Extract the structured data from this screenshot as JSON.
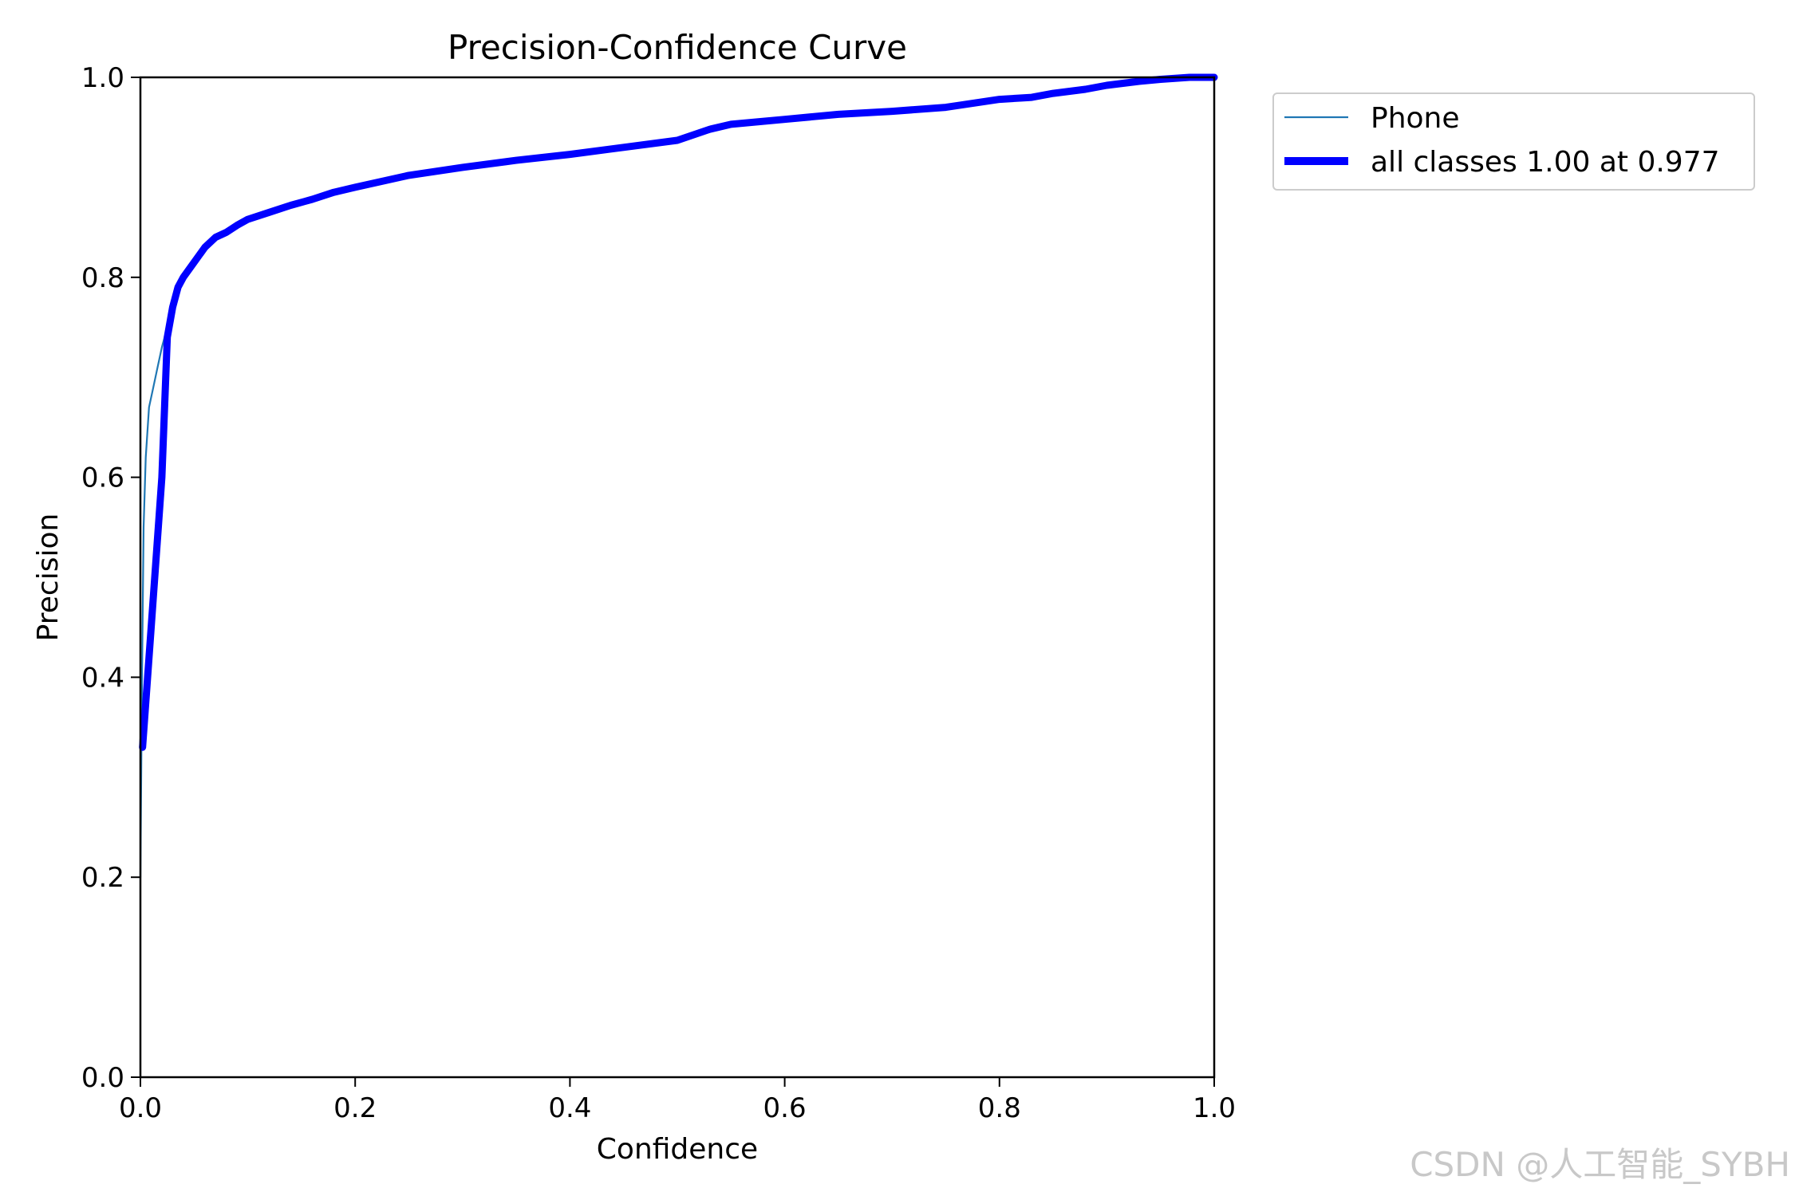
{
  "chart_data": {
    "type": "line",
    "title": "Precision-Confidence Curve",
    "xlabel": "Confidence",
    "ylabel": "Precision",
    "xlim": [
      0,
      1
    ],
    "ylim": [
      0,
      1
    ],
    "xticks": [
      "0.0",
      "0.2",
      "0.4",
      "0.6",
      "0.8",
      "1.0"
    ],
    "yticks": [
      "0.0",
      "0.2",
      "0.4",
      "0.6",
      "0.8",
      "1.0"
    ],
    "grid": false,
    "legend_position": "outside top-right",
    "series": [
      {
        "name": "Phone",
        "color": "#1f77b4",
        "style": "thin",
        "x": [
          0.0,
          0.0015,
          0.003,
          0.005,
          0.008,
          0.012,
          0.016,
          0.02,
          0.025,
          0.03,
          0.035,
          0.04,
          0.045,
          0.05,
          0.06,
          0.07,
          0.08,
          0.09,
          0.1,
          0.12,
          0.14,
          0.16,
          0.18,
          0.2,
          0.25,
          0.3,
          0.35,
          0.4,
          0.45,
          0.5,
          0.53,
          0.55,
          0.6,
          0.65,
          0.7,
          0.75,
          0.8,
          0.83,
          0.85,
          0.88,
          0.9,
          0.93,
          0.95,
          0.977,
          1.0
        ],
        "values": [
          0.2,
          0.4,
          0.55,
          0.62,
          0.67,
          0.69,
          0.71,
          0.73,
          0.75,
          0.77,
          0.79,
          0.8,
          0.81,
          0.815,
          0.83,
          0.84,
          0.845,
          0.852,
          0.858,
          0.865,
          0.872,
          0.878,
          0.885,
          0.89,
          0.902,
          0.91,
          0.917,
          0.923,
          0.93,
          0.937,
          0.948,
          0.953,
          0.958,
          0.963,
          0.966,
          0.97,
          0.978,
          0.98,
          0.984,
          0.988,
          0.992,
          0.996,
          0.998,
          1.0,
          1.0
        ]
      },
      {
        "name": "all classes 1.00 at 0.977",
        "color": "#0000ff",
        "style": "thick",
        "x": [
          0.002,
          0.01,
          0.02,
          0.025,
          0.03,
          0.035,
          0.04,
          0.05,
          0.06,
          0.07,
          0.08,
          0.09,
          0.1,
          0.12,
          0.14,
          0.16,
          0.18,
          0.2,
          0.25,
          0.3,
          0.35,
          0.4,
          0.45,
          0.5,
          0.53,
          0.55,
          0.6,
          0.65,
          0.7,
          0.75,
          0.8,
          0.83,
          0.85,
          0.88,
          0.9,
          0.93,
          0.95,
          0.977,
          1.0
        ],
        "values": [
          0.33,
          0.45,
          0.6,
          0.74,
          0.77,
          0.79,
          0.8,
          0.815,
          0.83,
          0.84,
          0.845,
          0.852,
          0.858,
          0.865,
          0.872,
          0.878,
          0.885,
          0.89,
          0.902,
          0.91,
          0.917,
          0.923,
          0.93,
          0.937,
          0.948,
          0.953,
          0.958,
          0.963,
          0.966,
          0.97,
          0.978,
          0.98,
          0.984,
          0.988,
          0.992,
          0.996,
          0.998,
          1.0,
          1.0
        ]
      }
    ]
  },
  "watermark": "CSDN @人工智能_SYBH"
}
